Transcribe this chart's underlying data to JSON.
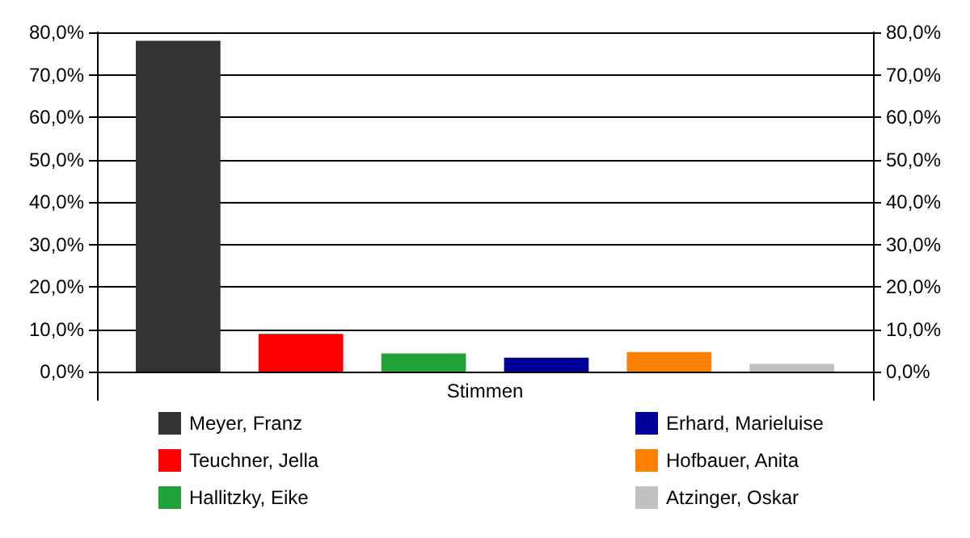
{
  "chart_data": {
    "type": "bar",
    "categories": [
      "Stimmen"
    ],
    "series": [
      {
        "name": "Meyer, Franz",
        "color": "#333333",
        "values": [
          78
        ]
      },
      {
        "name": "Teuchner, Jella",
        "color": "#ff0000",
        "values": [
          8.9
        ]
      },
      {
        "name": "Hallitzky, Eike",
        "color": "#22a33a",
        "values": [
          4.3
        ]
      },
      {
        "name": "Erhard, Marieluise",
        "color": "#000099",
        "values": [
          3.3
        ]
      },
      {
        "name": "Hofbauer, Anita",
        "color": "#ff8000",
        "values": [
          4.6
        ]
      },
      {
        "name": "Atzinger, Oskar",
        "color": "#c0c0c0",
        "values": [
          1.8
        ]
      }
    ],
    "ylim": [
      0,
      80
    ],
    "yticks": [
      {
        "value": 0,
        "label": "0,0%"
      },
      {
        "value": 10,
        "label": "10,0%"
      },
      {
        "value": 20,
        "label": "20,0%"
      },
      {
        "value": 30,
        "label": "30,0%"
      },
      {
        "value": 40,
        "label": "40,0%"
      },
      {
        "value": 50,
        "label": "50,0%"
      },
      {
        "value": 60,
        "label": "60,0%"
      },
      {
        "value": 70,
        "label": "70,0%"
      },
      {
        "value": 80,
        "label": "80,0%"
      }
    ],
    "grid": "y",
    "legend": "bottom"
  }
}
